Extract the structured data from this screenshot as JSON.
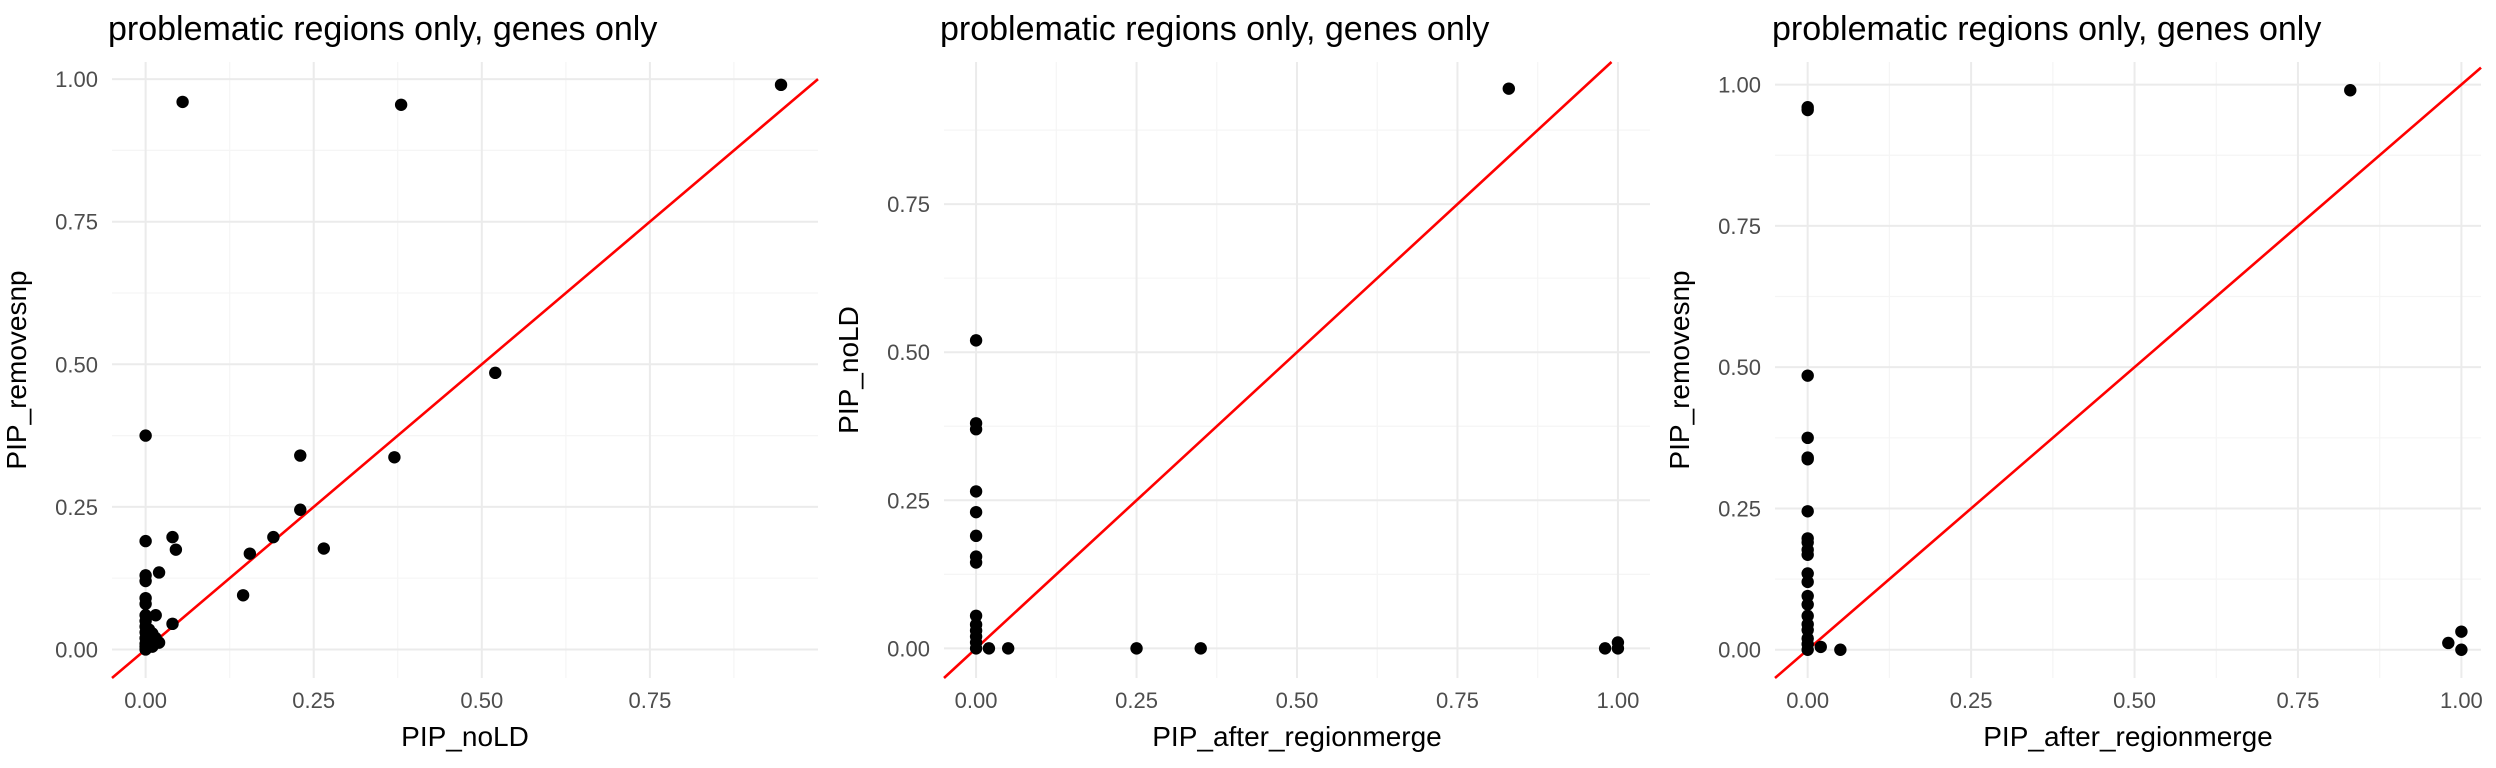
{
  "chart_data": [
    {
      "type": "scatter",
      "title": "problematic regions only, genes only",
      "xlabel": "PIP_noLD",
      "ylabel": "PIP_removesnp",
      "xlim": [
        -0.05,
        1.0
      ],
      "ylim": [
        -0.05,
        1.03
      ],
      "xticks": [
        0.0,
        0.25,
        0.5,
        0.75
      ],
      "xtick_labels": [
        "0.00",
        "0.25",
        "0.50",
        "0.75"
      ],
      "yticks": [
        0.0,
        0.25,
        0.5,
        0.75,
        1.0
      ],
      "ytick_labels": [
        "0.00",
        "0.25",
        "0.50",
        "0.75",
        "1.00"
      ],
      "grid": true,
      "reference_line": {
        "slope": 1,
        "intercept": 0,
        "color": "#ff0000"
      },
      "point_color": "#000000",
      "points": [
        [
          0.945,
          0.99
        ],
        [
          0.055,
          0.96
        ],
        [
          0.38,
          0.955
        ],
        [
          0.52,
          0.485
        ],
        [
          0.0,
          0.375
        ],
        [
          0.23,
          0.34
        ],
        [
          0.37,
          0.337
        ],
        [
          0.23,
          0.245
        ],
        [
          0.04,
          0.197
        ],
        [
          0.19,
          0.197
        ],
        [
          0.0,
          0.19
        ],
        [
          0.265,
          0.177
        ],
        [
          0.045,
          0.175
        ],
        [
          0.155,
          0.168
        ],
        [
          0.02,
          0.135
        ],
        [
          0.0,
          0.13
        ],
        [
          0.0,
          0.12
        ],
        [
          0.145,
          0.095
        ],
        [
          0.0,
          0.09
        ],
        [
          0.0,
          0.08
        ],
        [
          0.0,
          0.06
        ],
        [
          0.015,
          0.06
        ],
        [
          0.0,
          0.05
        ],
        [
          0.04,
          0.045
        ],
        [
          0.0,
          0.04
        ],
        [
          0.005,
          0.035
        ],
        [
          0.0,
          0.03
        ],
        [
          0.01,
          0.028
        ],
        [
          0.0,
          0.02
        ],
        [
          0.015,
          0.02
        ],
        [
          0.005,
          0.015
        ],
        [
          0.02,
          0.012
        ],
        [
          0.0,
          0.01
        ],
        [
          0.0,
          0.005
        ],
        [
          0.01,
          0.005
        ],
        [
          0.0,
          0.0
        ]
      ]
    },
    {
      "type": "scatter",
      "title": "problematic regions only, genes only",
      "xlabel": "PIP_after_regionmerge",
      "ylabel": "PIP_noLD",
      "xlim": [
        -0.05,
        1.05
      ],
      "ylim": [
        -0.05,
        0.99
      ],
      "xticks": [
        0.0,
        0.25,
        0.5,
        0.75,
        1.0
      ],
      "xtick_labels": [
        "0.00",
        "0.25",
        "0.50",
        "0.75",
        "1.00"
      ],
      "yticks": [
        0.0,
        0.25,
        0.5,
        0.75
      ],
      "ytick_labels": [
        "0.00",
        "0.25",
        "0.50",
        "0.75"
      ],
      "grid": true,
      "reference_line": {
        "slope": 1,
        "intercept": 0,
        "color": "#ff0000"
      },
      "point_color": "#000000",
      "points": [
        [
          0.83,
          0.945
        ],
        [
          0.0,
          0.52
        ],
        [
          0.0,
          0.38
        ],
        [
          0.0,
          0.37
        ],
        [
          0.0,
          0.265
        ],
        [
          0.0,
          0.23
        ],
        [
          0.0,
          0.19
        ],
        [
          0.0,
          0.155
        ],
        [
          0.0,
          0.145
        ],
        [
          0.0,
          0.055
        ],
        [
          0.0,
          0.04
        ],
        [
          0.0,
          0.03
        ],
        [
          0.0,
          0.02
        ],
        [
          0.0,
          0.01
        ],
        [
          0.0,
          0.0
        ],
        [
          0.02,
          0.0
        ],
        [
          0.05,
          0.0
        ],
        [
          0.25,
          0.0
        ],
        [
          0.35,
          0.0
        ],
        [
          0.98,
          0.0
        ],
        [
          1.0,
          0.0
        ],
        [
          1.0,
          0.01
        ]
      ]
    },
    {
      "type": "scatter",
      "title": "problematic regions only, genes only",
      "xlabel": "PIP_after_regionmerge",
      "ylabel": "PIP_removesnp",
      "xlim": [
        -0.05,
        1.03
      ],
      "ylim": [
        -0.05,
        1.04
      ],
      "xticks": [
        0.0,
        0.25,
        0.5,
        0.75,
        1.0
      ],
      "xtick_labels": [
        "0.00",
        "0.25",
        "0.50",
        "0.75",
        "1.00"
      ],
      "yticks": [
        0.0,
        0.25,
        0.5,
        0.75,
        1.0
      ],
      "ytick_labels": [
        "0.00",
        "0.25",
        "0.50",
        "0.75",
        "1.00"
      ],
      "grid": true,
      "reference_line": {
        "slope": 1,
        "intercept": 0,
        "color": "#ff0000"
      },
      "point_color": "#000000",
      "points": [
        [
          0.83,
          0.99
        ],
        [
          0.0,
          0.96
        ],
        [
          0.0,
          0.955
        ],
        [
          0.0,
          0.485
        ],
        [
          0.0,
          0.375
        ],
        [
          0.0,
          0.34
        ],
        [
          0.0,
          0.337
        ],
        [
          0.0,
          0.245
        ],
        [
          0.0,
          0.197
        ],
        [
          0.0,
          0.19
        ],
        [
          0.0,
          0.177
        ],
        [
          0.0,
          0.168
        ],
        [
          0.0,
          0.135
        ],
        [
          0.0,
          0.12
        ],
        [
          0.0,
          0.095
        ],
        [
          0.0,
          0.08
        ],
        [
          0.0,
          0.06
        ],
        [
          0.0,
          0.045
        ],
        [
          0.0,
          0.035
        ],
        [
          0.0,
          0.02
        ],
        [
          0.0,
          0.01
        ],
        [
          0.0,
          0.0
        ],
        [
          0.02,
          0.005
        ],
        [
          0.05,
          0.0
        ],
        [
          0.98,
          0.012
        ],
        [
          1.0,
          0.032
        ],
        [
          1.0,
          0.0
        ]
      ]
    }
  ]
}
